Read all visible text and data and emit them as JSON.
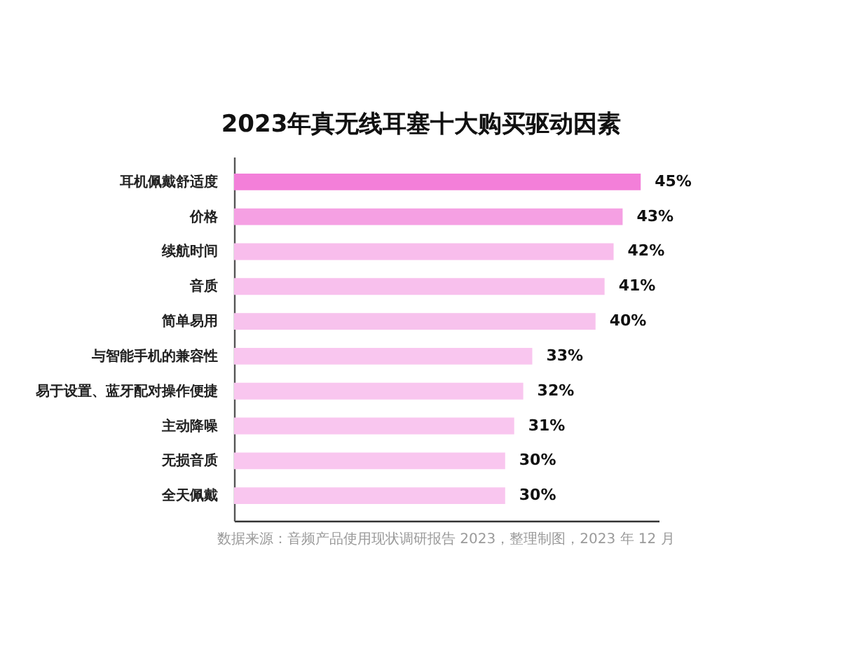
{
  "chart_data": {
    "type": "bar",
    "orientation": "horizontal",
    "title": "2023年真无线耳塞十大购买驱动因素",
    "categories": [
      "耳机佩戴舒适度",
      "价格",
      "续航时间",
      "音质",
      "简单易用",
      "与智能手机的兼容性",
      "易于设置、蓝牙配对操作便捷",
      "主动降噪",
      "无损音质",
      "全天佩戴"
    ],
    "values": [
      45,
      43,
      42,
      41,
      40,
      33,
      32,
      31,
      30,
      30
    ],
    "colors": [
      "#f37fd9",
      "#f5a0e3",
      "#f8bdec",
      "#f8c0ed",
      "#f7c2ed",
      "#f9c6ef",
      "#f9c6ef",
      "#f9c6ef",
      "#f9c6ef",
      "#f9c6ef"
    ],
    "value_labels": [
      "45%",
      "43%",
      "42%",
      "41%",
      "40%",
      "33%",
      "32%",
      "31%",
      "30%",
      "30%"
    ],
    "xlim": [
      0,
      47
    ],
    "tick_labels": "y",
    "annotations": [
      "数据来源：音频产品使用现状调研报告 2023，整理制图，2023 年 12 月"
    ]
  }
}
